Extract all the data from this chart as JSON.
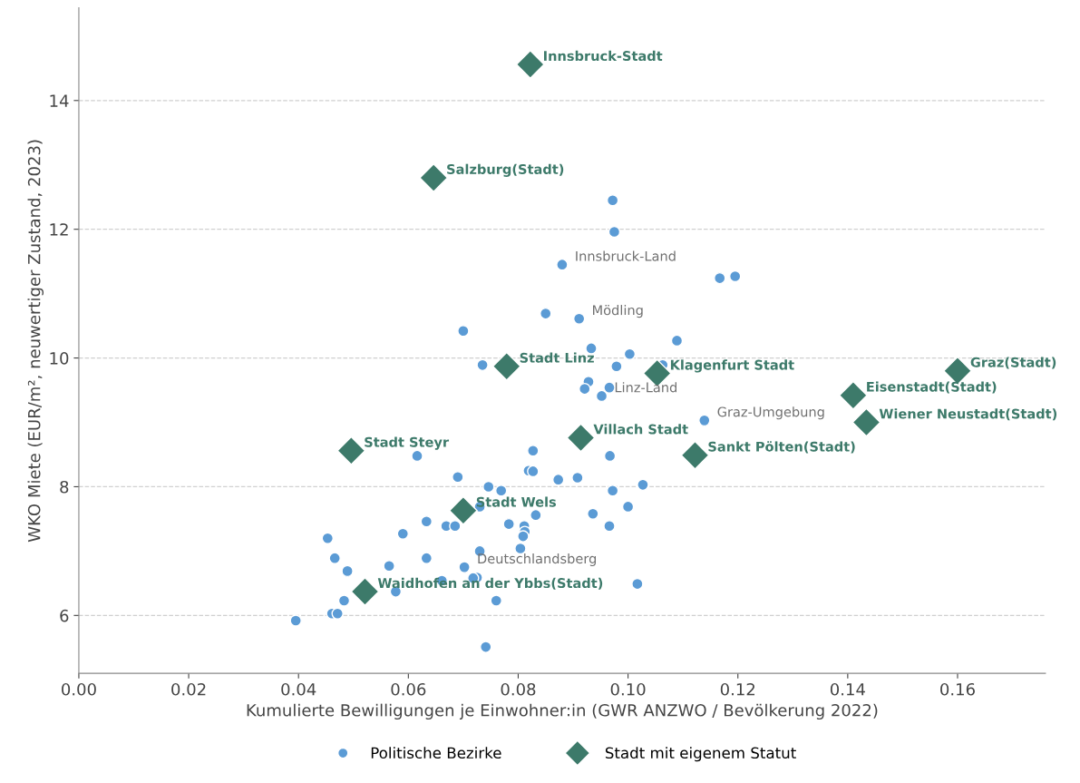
{
  "chart_data": {
    "type": "scatter",
    "xlabel": "Kumulierte Bewilligungen je Einwohner:in (GWR ANZWO / Bevölkerung 2022)",
    "ylabel": "WKO Miete (EUR/m², neuwertiger Zustand, 2023)",
    "xlim": [
      0,
      0.176
    ],
    "ylim": [
      5.1,
      15.44
    ],
    "xticks": [
      {
        "value": 0,
        "label": "0.00"
      },
      {
        "value": 0.02,
        "label": "0.02"
      },
      {
        "value": 0.04,
        "label": "0.04"
      },
      {
        "value": 0.06,
        "label": "0.06"
      },
      {
        "value": 0.08,
        "label": "0.08"
      },
      {
        "value": 0.1,
        "label": "0.10"
      },
      {
        "value": 0.12,
        "label": "0.12"
      },
      {
        "value": 0.14,
        "label": "0.14"
      },
      {
        "value": 0.16,
        "label": "0.16"
      }
    ],
    "yticks": [
      6,
      8,
      10,
      12,
      14
    ],
    "grid": "y",
    "legend": "bottom",
    "series": [
      {
        "name": "Politische Bezirke",
        "color": "#5b9bd5",
        "marker": "circle",
        "x": [
          0.0972,
          0.0975,
          0.088,
          0.085,
          0.0911,
          0.07,
          0.1089,
          0.1003,
          0.0933,
          0.0735,
          0.0979,
          0.1063,
          0.0928,
          0.0966,
          0.0921,
          0.0952,
          0.1167,
          0.1195,
          0.1139,
          0.0616,
          0.0827,
          0.0967,
          0.069,
          0.0819,
          0.0827,
          0.0873,
          0.0908,
          0.0746,
          0.0769,
          0.1027,
          0.0972,
          0.073,
          0.1,
          0.0633,
          0.0669,
          0.0685,
          0.0783,
          0.0832,
          0.0811,
          0.0812,
          0.0809,
          0.0936,
          0.0966,
          0.059,
          0.0453,
          0.0466,
          0.0489,
          0.0565,
          0.0633,
          0.0702,
          0.073,
          0.0804,
          0.0661,
          0.0725,
          0.0718,
          0.0577,
          0.0483,
          0.0461,
          0.0471,
          0.076,
          0.1017,
          0.0741,
          0.0395
        ],
        "values": [
          12.45,
          11.96,
          11.45,
          10.69,
          10.61,
          10.42,
          10.27,
          10.06,
          10.15,
          9.89,
          9.87,
          9.89,
          9.63,
          9.54,
          9.52,
          9.41,
          11.24,
          11.27,
          9.03,
          8.48,
          8.56,
          8.48,
          8.15,
          8.25,
          8.24,
          8.11,
          8.14,
          8.0,
          7.94,
          8.03,
          7.94,
          7.69,
          7.69,
          7.46,
          7.39,
          7.39,
          7.42,
          7.56,
          7.39,
          7.3,
          7.23,
          7.58,
          7.39,
          7.27,
          7.2,
          6.89,
          6.69,
          6.77,
          6.89,
          6.75,
          7.0,
          7.04,
          6.54,
          6.59,
          6.58,
          6.37,
          6.23,
          6.03,
          6.03,
          6.23,
          6.49,
          5.51,
          5.92
        ]
      },
      {
        "name": "Stadt mit eigenem Statut",
        "color": "#3d7a6a",
        "marker": "diamond",
        "x": [
          0.0822,
          0.0646,
          0.0779,
          0.1053,
          0.16,
          0.141,
          0.1434,
          0.1122,
          0.0914,
          0.0496,
          0.07,
          0.0521
        ],
        "values": [
          14.56,
          12.8,
          9.87,
          9.76,
          9.8,
          9.42,
          9.0,
          8.49,
          8.76,
          8.56,
          7.63,
          6.37
        ]
      }
    ],
    "annotations": [
      {
        "text": "Innsbruck-Stadt",
        "x": 0.0822,
        "y": 14.56
      },
      {
        "text": "Salzburg(Stadt)",
        "x": 0.0646,
        "y": 12.8
      },
      {
        "text": "Stadt Linz",
        "x": 0.0779,
        "y": 9.87
      },
      {
        "text": "Klagenfurt Stadt",
        "x": 0.1053,
        "y": 9.76
      },
      {
        "text": "Graz(Stadt)",
        "x": 0.16,
        "y": 9.8
      },
      {
        "text": "Eisenstadt(Stadt)",
        "x": 0.141,
        "y": 9.42
      },
      {
        "text": "Wiener Neustadt(Stadt)",
        "x": 0.1434,
        "y": 9.0
      },
      {
        "text": "Sankt Pölten(Stadt)",
        "x": 0.1122,
        "y": 8.49
      },
      {
        "text": "Villach Stadt",
        "x": 0.0914,
        "y": 8.76
      },
      {
        "text": "Stadt Steyr",
        "x": 0.0496,
        "y": 8.56
      },
      {
        "text": "Stadt Wels",
        "x": 0.07,
        "y": 7.63
      },
      {
        "text": "Waidhofen an der Ybbs(Stadt)",
        "x": 0.0521,
        "y": 6.37
      },
      {
        "text": "Innsbruck-Land",
        "x": 0.088,
        "y": 11.45
      },
      {
        "text": "Mödling",
        "x": 0.0911,
        "y": 10.61
      },
      {
        "text": "Linz-Land",
        "x": 0.0952,
        "y": 9.41
      },
      {
        "text": "Graz-Umgebung",
        "x": 0.1139,
        "y": 9.03
      },
      {
        "text": "Deutschlandsberg",
        "x": 0.0702,
        "y": 6.75
      }
    ]
  }
}
